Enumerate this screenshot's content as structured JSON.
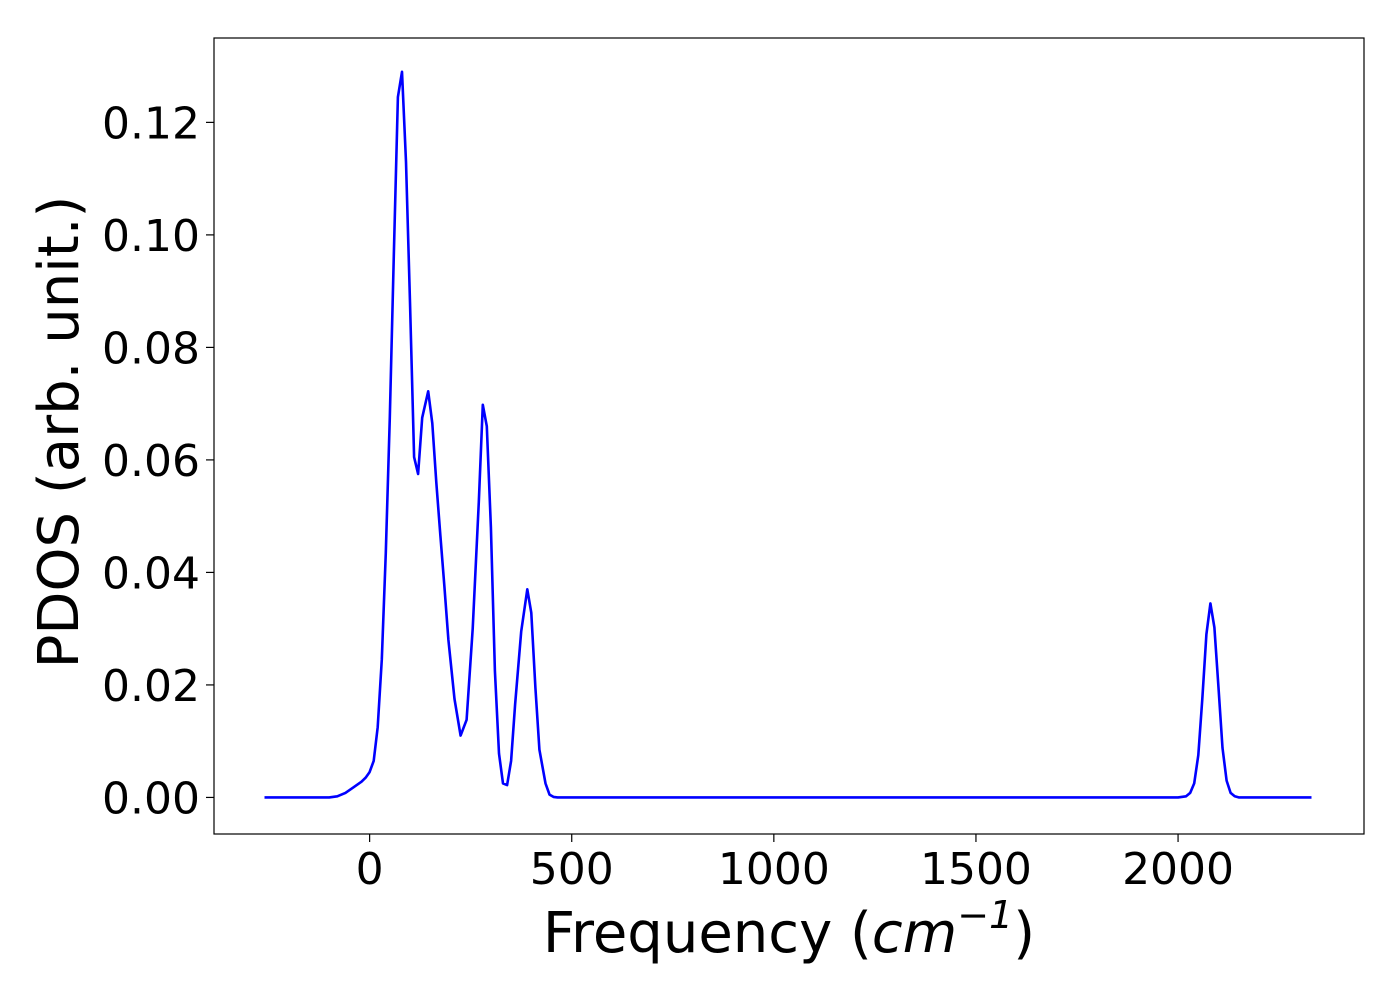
{
  "chart_data": {
    "type": "line",
    "title": "",
    "xlabel": {
      "prefix": "Frequency (",
      "math_base": "cm",
      "math_sup": "−1",
      "suffix": ")"
    },
    "ylabel": "PDOS (arb. unit.)",
    "xlim": [
      -385,
      2460
    ],
    "ylim": [
      -0.0065,
      0.135
    ],
    "xticks": [
      0,
      500,
      1000,
      1500,
      2000
    ],
    "xtick_labels": [
      "0",
      "500",
      "1000",
      "1500",
      "2000"
    ],
    "yticks": [
      0.0,
      0.02,
      0.04,
      0.06,
      0.08,
      0.1,
      0.12
    ],
    "ytick_labels": [
      "0.00",
      "0.02",
      "0.04",
      "0.06",
      "0.08",
      "0.10",
      "0.12"
    ],
    "grid": false,
    "legend": "none",
    "series": [
      {
        "color": "#0000ff",
        "x": [
          -260,
          -200,
          -150,
          -100,
          -80,
          -60,
          -40,
          -20,
          -10,
          0,
          10,
          20,
          30,
          40,
          50,
          60,
          70,
          80,
          90,
          100,
          110,
          120,
          130,
          145,
          155,
          165,
          175,
          185,
          195,
          210,
          225,
          240,
          255,
          270,
          280,
          290,
          300,
          310,
          320,
          330,
          340,
          350,
          360,
          375,
          390,
          400,
          410,
          420,
          435,
          445,
          455,
          465,
          475,
          485,
          495,
          505,
          520,
          600,
          800,
          1000,
          1200,
          1400,
          1600,
          1800,
          2000,
          2020,
          2030,
          2040,
          2050,
          2060,
          2070,
          2080,
          2090,
          2100,
          2110,
          2120,
          2130,
          2140,
          2150,
          2160,
          2170,
          2180,
          2200,
          2250,
          2330
        ],
        "y": [
          0.0,
          0.0,
          0.0,
          0.0,
          0.0002,
          0.0008,
          0.0018,
          0.0028,
          0.0035,
          0.0045,
          0.0065,
          0.0125,
          0.0245,
          0.0435,
          0.0675,
          0.097,
          0.1245,
          0.129,
          0.113,
          0.088,
          0.0605,
          0.0575,
          0.0675,
          0.0722,
          0.0665,
          0.056,
          0.0465,
          0.0375,
          0.028,
          0.0175,
          0.011,
          0.0138,
          0.03,
          0.0525,
          0.0698,
          0.066,
          0.048,
          0.0225,
          0.0078,
          0.0025,
          0.0022,
          0.0065,
          0.0165,
          0.0295,
          0.037,
          0.0328,
          0.0195,
          0.0085,
          0.0025,
          0.0005,
          0.0001,
          0.0,
          0.0,
          0.0,
          0.0,
          0.0,
          0.0,
          0.0,
          0.0,
          0.0,
          0.0,
          0.0,
          0.0,
          0.0,
          0.0,
          0.0002,
          0.0008,
          0.0025,
          0.0075,
          0.0175,
          0.029,
          0.0345,
          0.0302,
          0.0195,
          0.0088,
          0.003,
          0.0008,
          0.0002,
          0.0,
          0.0,
          0.0,
          0.0,
          0.0,
          0.0,
          0.0
        ]
      }
    ]
  }
}
